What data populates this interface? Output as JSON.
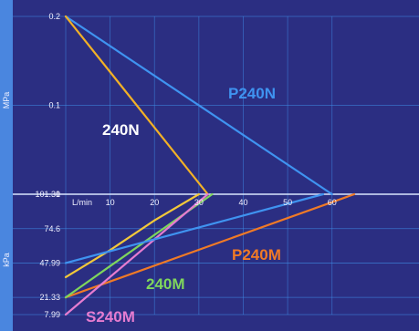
{
  "chart_data": {
    "type": "line",
    "grid": true,
    "colors": {
      "background": "#2b2e82",
      "panel": "#2a2d80",
      "grid": "#3f8de6",
      "yaxis_strip": "#4a86df"
    },
    "units": {
      "top_y": "MPa",
      "bottom_y": "kPa",
      "x": "L/min"
    },
    "top_panel": {
      "ylim": [
        0,
        0.2
      ],
      "yticks": [
        "0.2",
        "0.1",
        "0"
      ],
      "series": [
        {
          "name": "P240N",
          "color": "#3f93f0",
          "points": [
            [
              0,
              0.2
            ],
            [
              60,
              0
            ]
          ]
        },
        {
          "name": "240N",
          "color": "#f2b126",
          "points": [
            [
              0,
              0.2
            ],
            [
              32,
              0
            ]
          ]
        }
      ]
    },
    "bottom_panel": {
      "ylim": [
        101.31,
        7.99
      ],
      "yticks": [
        "101.31",
        "74.6",
        "47.99",
        "21.33",
        "7.99"
      ],
      "series": [
        {
          "name": "P240M",
          "color": "#f07a26",
          "points": [
            [
              0,
              21.33
            ],
            [
              65,
              101.31
            ]
          ]
        },
        {
          "name": "240M",
          "color": "#7fd65c",
          "points": [
            [
              0,
              21.33
            ],
            [
              33,
              101.31
            ]
          ]
        },
        {
          "name": "S240M",
          "color": "#e67cd0",
          "points": [
            [
              0,
              7.99
            ],
            [
              32,
              101.31
            ]
          ]
        },
        {
          "name": "",
          "color": "#f2c83a",
          "points": [
            [
              0,
              37.0
            ],
            [
              10,
              58.0
            ],
            [
              20,
              81.0
            ],
            [
              30,
              101.31
            ]
          ]
        },
        {
          "name": "",
          "color": "#3f93f0",
          "points": [
            [
              0,
              47.99
            ],
            [
              58,
              101.31
            ]
          ]
        }
      ]
    },
    "xticks": [
      "10",
      "20",
      "30",
      "40",
      "50",
      "60"
    ],
    "xtick_values": [
      10,
      20,
      30,
      40,
      50,
      60
    ],
    "xlim": [
      0,
      70
    ]
  }
}
